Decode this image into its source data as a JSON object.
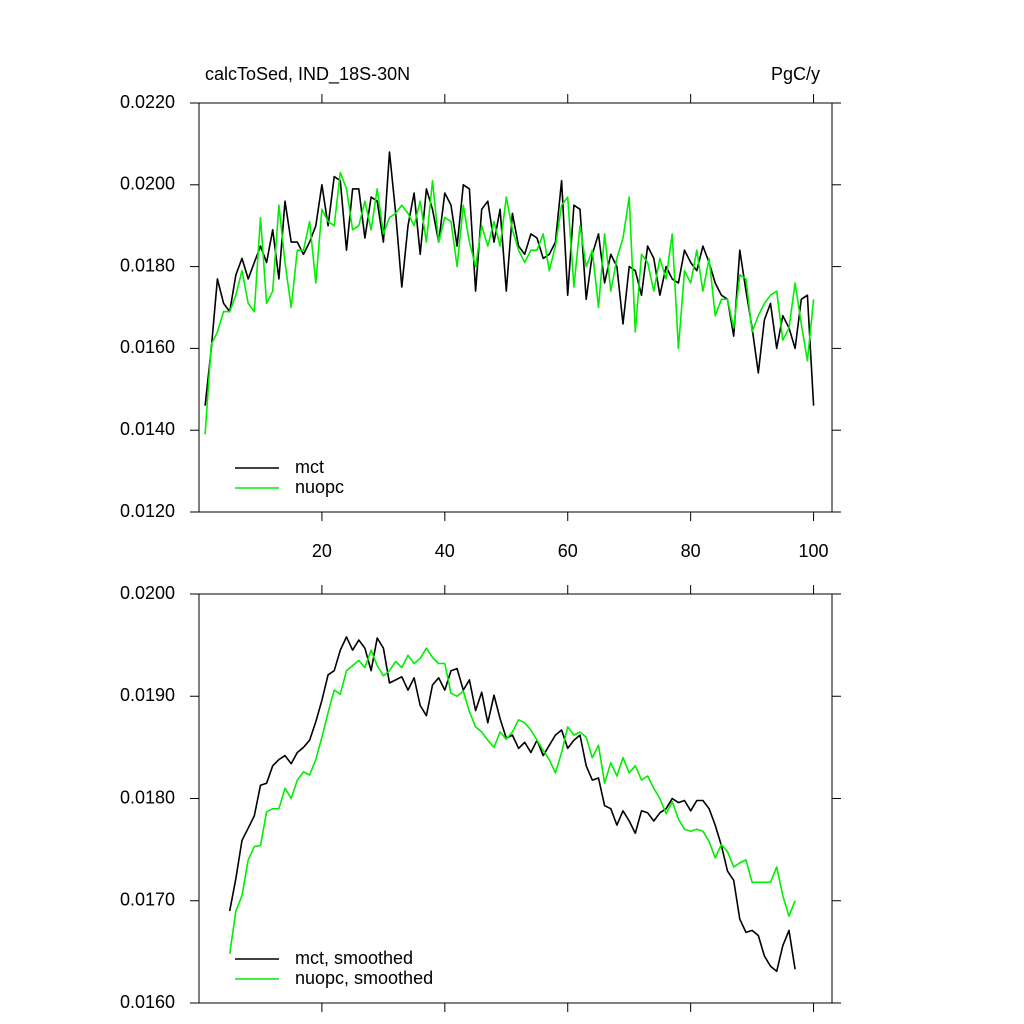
{
  "chart_data": [
    {
      "type": "line",
      "title": "calcToSed, IND_18S-30N",
      "units_label": "PgC/y",
      "x": [
        1,
        2,
        3,
        4,
        5,
        6,
        7,
        8,
        9,
        10,
        11,
        12,
        13,
        14,
        15,
        16,
        17,
        18,
        19,
        20,
        21,
        22,
        23,
        24,
        25,
        26,
        27,
        28,
        29,
        30,
        31,
        32,
        33,
        34,
        35,
        36,
        37,
        38,
        39,
        40,
        41,
        42,
        43,
        44,
        45,
        46,
        47,
        48,
        49,
        50,
        51,
        52,
        53,
        54,
        55,
        56,
        57,
        58,
        59,
        60,
        61,
        62,
        63,
        64,
        65,
        66,
        67,
        68,
        69,
        70,
        71,
        72,
        73,
        74,
        75,
        76,
        77,
        78,
        79,
        80,
        81,
        82,
        83,
        84,
        85,
        86,
        87,
        88,
        89,
        90,
        91,
        92,
        93,
        94,
        95,
        96,
        97,
        98,
        99,
        100
      ],
      "series": [
        {
          "name": "mct",
          "color": "#000000",
          "values": [
            0.0146,
            0.016,
            0.0177,
            0.0171,
            0.0169,
            0.0178,
            0.0182,
            0.0177,
            0.0181,
            0.0185,
            0.0181,
            0.0189,
            0.0177,
            0.0196,
            0.0186,
            0.0186,
            0.0183,
            0.0186,
            0.019,
            0.02,
            0.019,
            0.0202,
            0.0201,
            0.0184,
            0.0199,
            0.0199,
            0.0187,
            0.0197,
            0.0196,
            0.0186,
            0.0208,
            0.0193,
            0.0175,
            0.019,
            0.0198,
            0.0183,
            0.0199,
            0.0194,
            0.0186,
            0.0198,
            0.0195,
            0.0185,
            0.02,
            0.0199,
            0.0174,
            0.0194,
            0.0196,
            0.0186,
            0.0194,
            0.0174,
            0.0193,
            0.0185,
            0.0183,
            0.0188,
            0.0187,
            0.0182,
            0.0183,
            0.0186,
            0.0201,
            0.0173,
            0.0195,
            0.0194,
            0.0172,
            0.0183,
            0.0188,
            0.0176,
            0.0183,
            0.018,
            0.0166,
            0.018,
            0.0179,
            0.0173,
            0.0185,
            0.0182,
            0.0173,
            0.018,
            0.0177,
            0.0176,
            0.0184,
            0.0181,
            0.0179,
            0.0185,
            0.0181,
            0.0176,
            0.0173,
            0.0172,
            0.0163,
            0.0184,
            0.0174,
            0.0165,
            0.0154,
            0.0167,
            0.0171,
            0.016,
            0.0168,
            0.0165,
            0.016,
            0.0172,
            0.0173,
            0.0146
          ]
        },
        {
          "name": "nuopc",
          "color": "#00ee00",
          "values": [
            0.0139,
            0.0161,
            0.0164,
            0.0169,
            0.0169,
            0.0173,
            0.0179,
            0.0171,
            0.0169,
            0.0192,
            0.0171,
            0.0174,
            0.0195,
            0.0181,
            0.017,
            0.0184,
            0.0184,
            0.0191,
            0.0176,
            0.0194,
            0.0191,
            0.019,
            0.0203,
            0.0199,
            0.0189,
            0.019,
            0.0196,
            0.0189,
            0.0199,
            0.0188,
            0.0192,
            0.0193,
            0.0195,
            0.0193,
            0.019,
            0.0196,
            0.0186,
            0.0201,
            0.0186,
            0.0192,
            0.0191,
            0.018,
            0.0195,
            0.0186,
            0.018,
            0.019,
            0.0185,
            0.0191,
            0.0185,
            0.0197,
            0.0189,
            0.0184,
            0.0181,
            0.0184,
            0.0184,
            0.0188,
            0.0179,
            0.0185,
            0.0195,
            0.0197,
            0.0175,
            0.019,
            0.018,
            0.0184,
            0.017,
            0.0188,
            0.0174,
            0.0182,
            0.0187,
            0.0197,
            0.0164,
            0.0183,
            0.0181,
            0.0174,
            0.0182,
            0.0177,
            0.0188,
            0.016,
            0.0179,
            0.0176,
            0.0184,
            0.0174,
            0.0182,
            0.0168,
            0.0172,
            0.0172,
            0.0165,
            0.0178,
            0.0177,
            0.0164,
            0.0168,
            0.0171,
            0.0173,
            0.0174,
            0.0162,
            0.0165,
            0.0176,
            0.0166,
            0.0157,
            0.0172
          ]
        }
      ],
      "xlim": [
        0,
        103
      ],
      "xticks": [
        20,
        40,
        60,
        80,
        100
      ],
      "xticklabels": true,
      "ylim": [
        0.012,
        0.022
      ],
      "yticks": [
        {
          "value": 0.022,
          "label": "0.0220"
        },
        {
          "value": 0.02,
          "label": "0.0200"
        },
        {
          "value": 0.018,
          "label": "0.0180"
        },
        {
          "value": 0.016,
          "label": "0.0160"
        },
        {
          "value": 0.014,
          "label": "0.0140"
        },
        {
          "value": 0.012,
          "label": "0.0120"
        }
      ],
      "legend": "lower left"
    },
    {
      "type": "line",
      "x": [
        5,
        6,
        7,
        8,
        9,
        10,
        11,
        12,
        13,
        14,
        15,
        16,
        17,
        18,
        19,
        20,
        21,
        22,
        23,
        24,
        25,
        26,
        27,
        28,
        29,
        30,
        31,
        32,
        33,
        34,
        35,
        36,
        37,
        38,
        39,
        40,
        41,
        42,
        43,
        44,
        45,
        46,
        47,
        48,
        49,
        50,
        51,
        52,
        53,
        54,
        55,
        56,
        57,
        58,
        59,
        60,
        61,
        62,
        63,
        64,
        65,
        66,
        67,
        68,
        69,
        70,
        71,
        72,
        73,
        74,
        75,
        76,
        77,
        78,
        79,
        80,
        81,
        82,
        83,
        84,
        85,
        86,
        87,
        88,
        89,
        90,
        91,
        92,
        93,
        94,
        95,
        96,
        97
      ],
      "series": [
        {
          "name": "mct, smoothed",
          "color": "#000000",
          "values": [
            0.0169,
            0.01722,
            0.01759,
            0.01771,
            0.01783,
            0.01813,
            0.01815,
            0.01832,
            0.01838,
            0.01842,
            0.01834,
            0.01845,
            0.0185,
            0.01857,
            0.01875,
            0.01896,
            0.01921,
            0.01925,
            0.01945,
            0.01958,
            0.01945,
            0.01955,
            0.01947,
            0.01925,
            0.01957,
            0.01947,
            0.01913,
            0.01916,
            0.01919,
            0.01906,
            0.01918,
            0.01891,
            0.01881,
            0.01911,
            0.01918,
            0.01906,
            0.01925,
            0.01927,
            0.01906,
            0.01916,
            0.01886,
            0.01904,
            0.01874,
            0.01901,
            0.01878,
            0.01859,
            0.01862,
            0.01849,
            0.01855,
            0.01845,
            0.01857,
            0.01842,
            0.01852,
            0.01862,
            0.01867,
            0.01849,
            0.01857,
            0.01862,
            0.01832,
            0.01818,
            0.0182,
            0.01793,
            0.0179,
            0.01774,
            0.01788,
            0.01778,
            0.01766,
            0.01788,
            0.01786,
            0.01778,
            0.01786,
            0.0179,
            0.018,
            0.01796,
            0.01798,
            0.01788,
            0.01798,
            0.01798,
            0.0179,
            0.01774,
            0.01754,
            0.01729,
            0.0172,
            0.01682,
            0.01669,
            0.01671,
            0.01666,
            0.01646,
            0.01636,
            0.01631,
            0.01656,
            0.01671,
            0.01633
          ]
        },
        {
          "name": "nuopc, smoothed",
          "color": "#00ee00",
          "values": [
            0.01648,
            0.0169,
            0.01705,
            0.0174,
            0.01753,
            0.01754,
            0.01787,
            0.0179,
            0.0179,
            0.0181,
            0.018,
            0.01818,
            0.01826,
            0.01823,
            0.01838,
            0.0186,
            0.01884,
            0.01906,
            0.01902,
            0.01925,
            0.0193,
            0.01935,
            0.01928,
            0.01945,
            0.0193,
            0.0192,
            0.01925,
            0.01934,
            0.01928,
            0.0194,
            0.01932,
            0.01937,
            0.01947,
            0.01938,
            0.01932,
            0.01932,
            0.01903,
            0.019,
            0.01905,
            0.01885,
            0.0187,
            0.01865,
            0.01857,
            0.0185,
            0.01865,
            0.01858,
            0.01865,
            0.01877,
            0.01874,
            0.01867,
            0.01857,
            0.01847,
            0.01838,
            0.01825,
            0.01845,
            0.0187,
            0.01862,
            0.01865,
            0.0186,
            0.0184,
            0.01852,
            0.01815,
            0.01835,
            0.01822,
            0.0184,
            0.01825,
            0.01832,
            0.01818,
            0.01822,
            0.0181,
            0.018,
            0.01785,
            0.01797,
            0.0178,
            0.0177,
            0.01768,
            0.0177,
            0.01768,
            0.01758,
            0.01742,
            0.01755,
            0.01748,
            0.01733,
            0.01737,
            0.0174,
            0.01718,
            0.01718,
            0.01718,
            0.01718,
            0.01733,
            0.01705,
            0.01685,
            0.017
          ]
        }
      ],
      "xlim": [
        0,
        103
      ],
      "xticks": [
        20,
        40,
        60,
        80,
        100
      ],
      "xticklabels": false,
      "ylim": [
        0.016,
        0.02
      ],
      "yticks": [
        {
          "value": 0.02,
          "label": "0.0200"
        },
        {
          "value": 0.019,
          "label": "0.0190"
        },
        {
          "value": 0.018,
          "label": "0.0180"
        },
        {
          "value": 0.017,
          "label": "0.0170"
        },
        {
          "value": 0.016,
          "label": "0.0160"
        }
      ],
      "legend": "lower left"
    }
  ]
}
